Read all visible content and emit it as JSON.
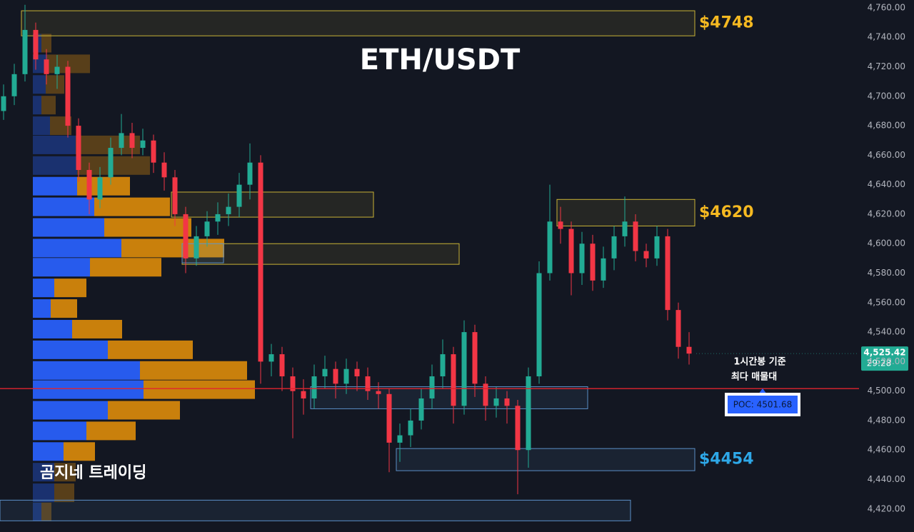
{
  "chart_data": {
    "type": "candlestick",
    "title": "ETH/USDT",
    "watermark": "곰지네 트레이딩",
    "up_color": "#22ab94",
    "down_color": "#f23645",
    "ylim": [
      4404.4,
      4765.3
    ],
    "yticks": [
      {
        "value": 4420,
        "label": "4,420.00"
      },
      {
        "value": 4440,
        "label": "4,440.00"
      },
      {
        "value": 4460,
        "label": "4,460.00"
      },
      {
        "value": 4480,
        "label": "4,480.00"
      },
      {
        "value": 4500,
        "label": "4,500.00"
      },
      {
        "value": 4520,
        "label": "4,520.00"
      },
      {
        "value": 4540,
        "label": "4,540.00"
      },
      {
        "value": 4560,
        "label": "4,560.00"
      },
      {
        "value": 4580,
        "label": "4,580.00"
      },
      {
        "value": 4600,
        "label": "4,600.00"
      },
      {
        "value": 4620,
        "label": "4,620.00"
      },
      {
        "value": 4640,
        "label": "4,640.00"
      },
      {
        "value": 4660,
        "label": "4,660.00"
      },
      {
        "value": 4680,
        "label": "4,680.00"
      },
      {
        "value": 4700,
        "label": "4,700.00"
      },
      {
        "value": 4720,
        "label": "4,720.00"
      },
      {
        "value": 4740,
        "label": "4,740.00"
      },
      {
        "value": 4760,
        "label": "4,760.00"
      }
    ],
    "grid": false,
    "open": [
      4690,
      4700,
      4715,
      4745,
      4725,
      4715,
      4720,
      4680,
      4650,
      4630,
      4645,
      4665,
      4675,
      4665,
      4670,
      4655,
      4645,
      4620,
      4590,
      4605,
      4615,
      4620,
      4625,
      4640,
      4655,
      4520,
      4525,
      4510,
      4500,
      4495,
      4510,
      4515,
      4505,
      4515,
      4510,
      4500,
      4498,
      4465,
      4470,
      4480,
      4495,
      4510,
      4525,
      4490,
      4540,
      4505,
      4490,
      4495,
      4490,
      4460,
      4510,
      4580,
      4615,
      4610,
      4580,
      4600,
      4575,
      4590,
      4605,
      4615,
      4595,
      4590,
      4605,
      4555,
      4530
    ],
    "high": [
      4708,
      4722,
      4762,
      4750,
      4732,
      4728,
      4724,
      4685,
      4655,
      4652,
      4672,
      4688,
      4682,
      4678,
      4674,
      4662,
      4650,
      4625,
      4612,
      4622,
      4628,
      4634,
      4648,
      4668,
      4660,
      4532,
      4530,
      4516,
      4508,
      4518,
      4524,
      4520,
      4522,
      4520,
      4516,
      4506,
      4502,
      4478,
      4488,
      4502,
      4518,
      4535,
      4530,
      4548,
      4545,
      4510,
      4503,
      4500,
      4494,
      4516,
      4588,
      4640,
      4625,
      4615,
      4608,
      4606,
      4598,
      4612,
      4632,
      4620,
      4600,
      4612,
      4610,
      4560,
      4540
    ],
    "low": [
      4684,
      4694,
      4710,
      4718,
      4708,
      4705,
      4672,
      4642,
      4620,
      4624,
      4640,
      4660,
      4658,
      4660,
      4648,
      4636,
      4612,
      4580,
      4585,
      4598,
      4606,
      4612,
      4618,
      4630,
      4505,
      4510,
      4500,
      4468,
      4484,
      4488,
      4502,
      4495,
      4498,
      4500,
      4494,
      4488,
      4445,
      4452,
      4462,
      4474,
      4488,
      4502,
      4478,
      4484,
      4496,
      4480,
      4482,
      4478,
      4430,
      4448,
      4505,
      4575,
      4600,
      4565,
      4572,
      4568,
      4570,
      4582,
      4598,
      4588,
      4584,
      4585,
      4548,
      4522,
      4518
    ],
    "close": [
      4700,
      4715,
      4745,
      4725,
      4715,
      4720,
      4680,
      4650,
      4630,
      4645,
      4665,
      4675,
      4665,
      4670,
      4655,
      4645,
      4620,
      4590,
      4605,
      4615,
      4620,
      4625,
      4640,
      4655,
      4520,
      4525,
      4510,
      4500,
      4495,
      4510,
      4515,
      4505,
      4515,
      4510,
      4500,
      4498,
      4465,
      4470,
      4480,
      4495,
      4510,
      4525,
      4490,
      4540,
      4505,
      4490,
      4495,
      4490,
      4460,
      4510,
      4580,
      4615,
      4610,
      4580,
      4600,
      4575,
      4590,
      4605,
      4615,
      4595,
      4590,
      4605,
      4555,
      4530,
      4525.42
    ],
    "volume_profile": {
      "levels": [
        4736,
        4722,
        4708,
        4694,
        4680,
        4667,
        4653,
        4639,
        4625,
        4611,
        4597,
        4584,
        4570,
        4556,
        4542,
        4528,
        4514,
        4501,
        4487,
        4473,
        4459,
        4445,
        4431,
        4418
      ],
      "buy": [
        12,
        20,
        18,
        12,
        24,
        60,
        62,
        62,
        86,
        100,
        124,
        80,
        30,
        25,
        55,
        105,
        150,
        155,
        105,
        75,
        43,
        30,
        30,
        12
      ],
      "sell": [
        14,
        60,
        26,
        20,
        30,
        90,
        102,
        74,
        106,
        122,
        144,
        100,
        45,
        37,
        70,
        119,
        150,
        156,
        101,
        69,
        44,
        30,
        28,
        14
      ],
      "buy_color": "#2962ff",
      "sell_color": "#d98a0b",
      "value_area": [
        4448,
        4646
      ]
    },
    "zones": [
      {
        "top": 4758,
        "bottom": 4741,
        "start": 2,
        "end": 64,
        "color": "#c9b336",
        "label": "$4748"
      },
      {
        "top": 4635,
        "bottom": 4618,
        "start": 16,
        "end": 34,
        "color": "#c9b336"
      },
      {
        "top": 4600,
        "bottom": 4586,
        "start": 17,
        "end": 42,
        "color": "#c9b336"
      },
      {
        "top": 4600,
        "bottom": 4587,
        "start": 17,
        "end": 20,
        "color": "#5b8fc7"
      },
      {
        "top": 4630,
        "bottom": 4612,
        "start": 52,
        "end": 64,
        "color": "#c9b336",
        "label": "$4620"
      },
      {
        "top": 4503,
        "bottom": 4488,
        "start": 29,
        "end": 54,
        "color": "#5b8fc7"
      },
      {
        "top": 4461,
        "bottom": 4446,
        "start": 37,
        "end": 64,
        "color": "#5b8fc7",
        "label": "$4454"
      },
      {
        "top": 4426,
        "bottom": 4412,
        "start": 0,
        "end": 58,
        "color": "#5b8fc7"
      }
    ],
    "poc": 4501.68,
    "poc_label": "POC: 4501.68",
    "poc_note": [
      "1시간봉 기준",
      "최다 매물대"
    ],
    "last_price": {
      "value": 4525.42,
      "label": "4,525.42"
    },
    "countdown": "29:28"
  }
}
